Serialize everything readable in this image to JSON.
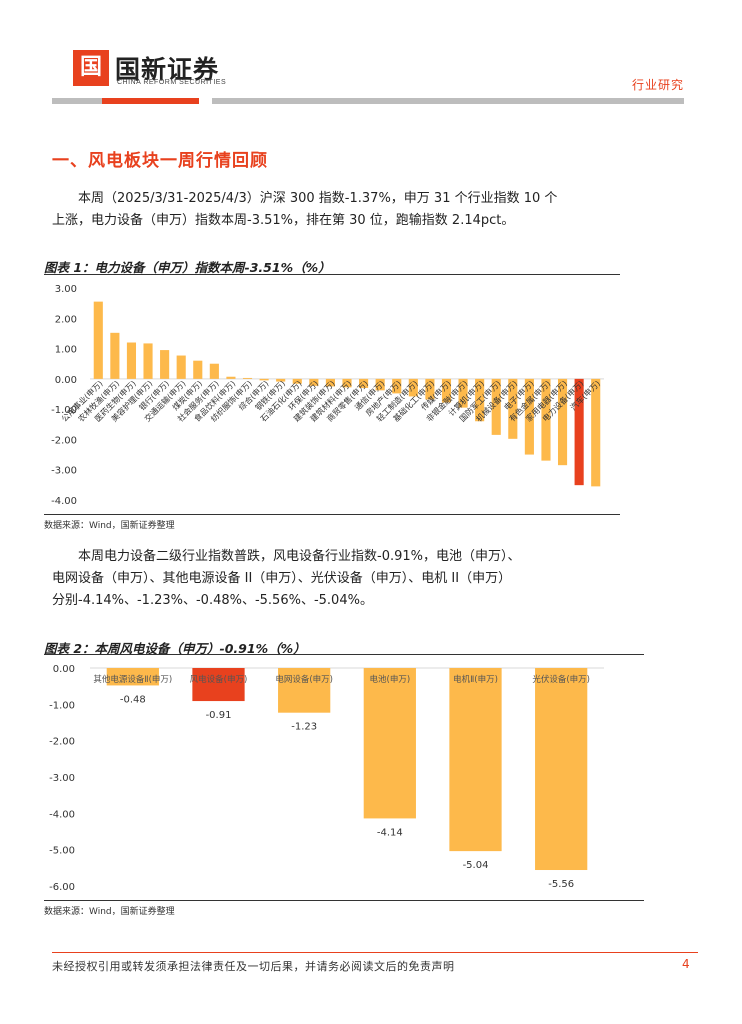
{
  "header": {
    "logo_mark": "国",
    "logo_text": "国新证券",
    "logo_subtitle": "CHINA REFORM SECURITIES",
    "section_tag": "行业研究"
  },
  "heading": "一、风电板块一周行情回顾",
  "paragraph1": {
    "line1": "本周（2025/3/31-2025/4/3）沪深 300 指数-1.37%，申万 31 个行业指数 10 个",
    "line2": "上涨，电力设备（申万）指数本周-3.51%，排在第 30 位，跑输指数 2.14pct。"
  },
  "figure1": {
    "title": "图表 1：电力设备（申万）指数本周-3.51%（%）",
    "source": "数据来源：Wind，国新证券整理"
  },
  "paragraph2": {
    "line1": "本周电力设备二级行业指数普跌，风电设备行业指数-0.91%，电池（申万）、",
    "line2": "电网设备（申万）、其他电源设备 II（申万）、光伏设备（申万）、电机 II（申万）",
    "line3": "分别-4.14%、-1.23%、-0.48%、-5.56%、-5.04%。"
  },
  "figure2": {
    "title": "图表 2：本周风电设备（申万）-0.91%（%）",
    "source": "数据来源：Wind，国新证券整理"
  },
  "chart_data": [
    {
      "type": "bar",
      "title": "图表 1：电力设备（申万）指数本周-3.51%（%）",
      "categories": [
        "公用事业(申万)",
        "农林牧渔(申万)",
        "医药生物(申万)",
        "美容护理(申万)",
        "银行(申万)",
        "交通运输(申万)",
        "煤炭(申万)",
        "社会服务(申万)",
        "食品饮料(申万)",
        "纺织服饰(申万)",
        "综合(申万)",
        "钢铁(申万)",
        "石油石化(申万)",
        "环保(申万)",
        "建筑装饰(申万)",
        "建筑材料(申万)",
        "商贸零售(申万)",
        "通信(申万)",
        "房地产(申万)",
        "轻工制造(申万)",
        "基础化工(申万)",
        "传媒(申万)",
        "非银金融(申万)",
        "计算机(申万)",
        "国防军工(申万)",
        "机械设备(申万)",
        "电子(申万)",
        "有色金属(申万)",
        "家用电器(申万)",
        "电力设备(申万)",
        "汽车(申万)"
      ],
      "values": [
        2.55,
        1.52,
        1.2,
        1.17,
        0.95,
        0.77,
        0.6,
        0.5,
        0.07,
        0.03,
        -0.05,
        -0.09,
        -0.16,
        -0.23,
        -0.25,
        -0.28,
        -0.3,
        -0.38,
        -0.48,
        -0.58,
        -0.68,
        -0.78,
        -0.95,
        -1.4,
        -1.85,
        -1.98,
        -2.5,
        -2.7,
        -2.85,
        -3.51,
        -3.55
      ],
      "highlight_index": 29,
      "ylim": [
        -4.0,
        3.0
      ],
      "yticks": [
        "3.00",
        "2.00",
        "1.00",
        "0.00",
        "-1.00",
        "-2.00",
        "-3.00",
        "-4.00"
      ],
      "colors": {
        "bar": "#fdb94b",
        "highlight": "#e8411e"
      }
    },
    {
      "type": "bar",
      "title": "图表 2：本周风电设备（申万）-0.91%（%）",
      "categories": [
        "其他电源设备Ⅱ(申万)",
        "风电设备(申万)",
        "电网设备(申万)",
        "电池(申万)",
        "电机Ⅱ(申万)",
        "光伏设备(申万)"
      ],
      "values": [
        -0.48,
        -0.91,
        -1.23,
        -4.14,
        -5.04,
        -5.56
      ],
      "labels": [
        "-0.48",
        "-0.91",
        "-1.23",
        "-4.14",
        "-5.04",
        "-5.56"
      ],
      "highlight_index": 1,
      "ylim": [
        -6.0,
        0.0
      ],
      "yticks": [
        "0.00",
        "-1.00",
        "-2.00",
        "-3.00",
        "-4.00",
        "-5.00",
        "-6.00"
      ],
      "colors": {
        "bar": "#fdb94b",
        "highlight": "#e8411e"
      }
    }
  ],
  "footer": {
    "disclaimer": "未经授权引用或转发须承担法律责任及一切后果，并请务必阅读文后的免责声明",
    "page_number": "4"
  }
}
